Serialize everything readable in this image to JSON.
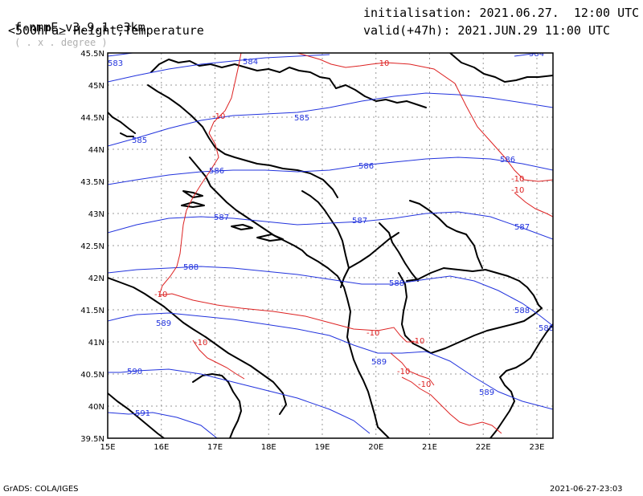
{
  "header": {
    "model_name": "f-nmmE_v3.9.1-e3km",
    "model_sub": "( . x . degree )",
    "field": "<500hPa> Height,Temperature",
    "init_label": "initialisation:",
    "init_value": "2021.06.27.  12:00 UTC",
    "valid_label": "valid(+47h):",
    "valid_value": "2021.JUN.29 11:00 UTC"
  },
  "footer": {
    "left": "GrADS: COLA/IGES",
    "right": "2021-06-27-23:03"
  },
  "map": {
    "lon_range": [
      15,
      23.3
    ],
    "lat_range": [
      39.5,
      45.5
    ],
    "lon_ticks": [
      "15E",
      "16E",
      "17E",
      "18E",
      "19E",
      "20E",
      "21E",
      "22E",
      "23E"
    ],
    "lat_ticks": [
      "39.5N",
      "40N",
      "40.5N",
      "41N",
      "41.5N",
      "42N",
      "42.5N",
      "43N",
      "43.5N",
      "44N",
      "44.5N",
      "45N",
      "45.5N"
    ],
    "height_color": "#2233dd",
    "temp_color": "#dd2222",
    "height_labels": [
      "583",
      "584",
      "584",
      "585",
      "585",
      "586",
      "586",
      "586",
      "587",
      "587",
      "587",
      "588",
      "588",
      "588",
      "588",
      "589",
      "589",
      "589",
      "590",
      "591"
    ],
    "temp_labels": [
      "-10",
      "-10",
      "-10",
      "-10",
      "-10",
      "-10",
      "-10",
      "-10",
      "-10",
      "-10"
    ]
  }
}
